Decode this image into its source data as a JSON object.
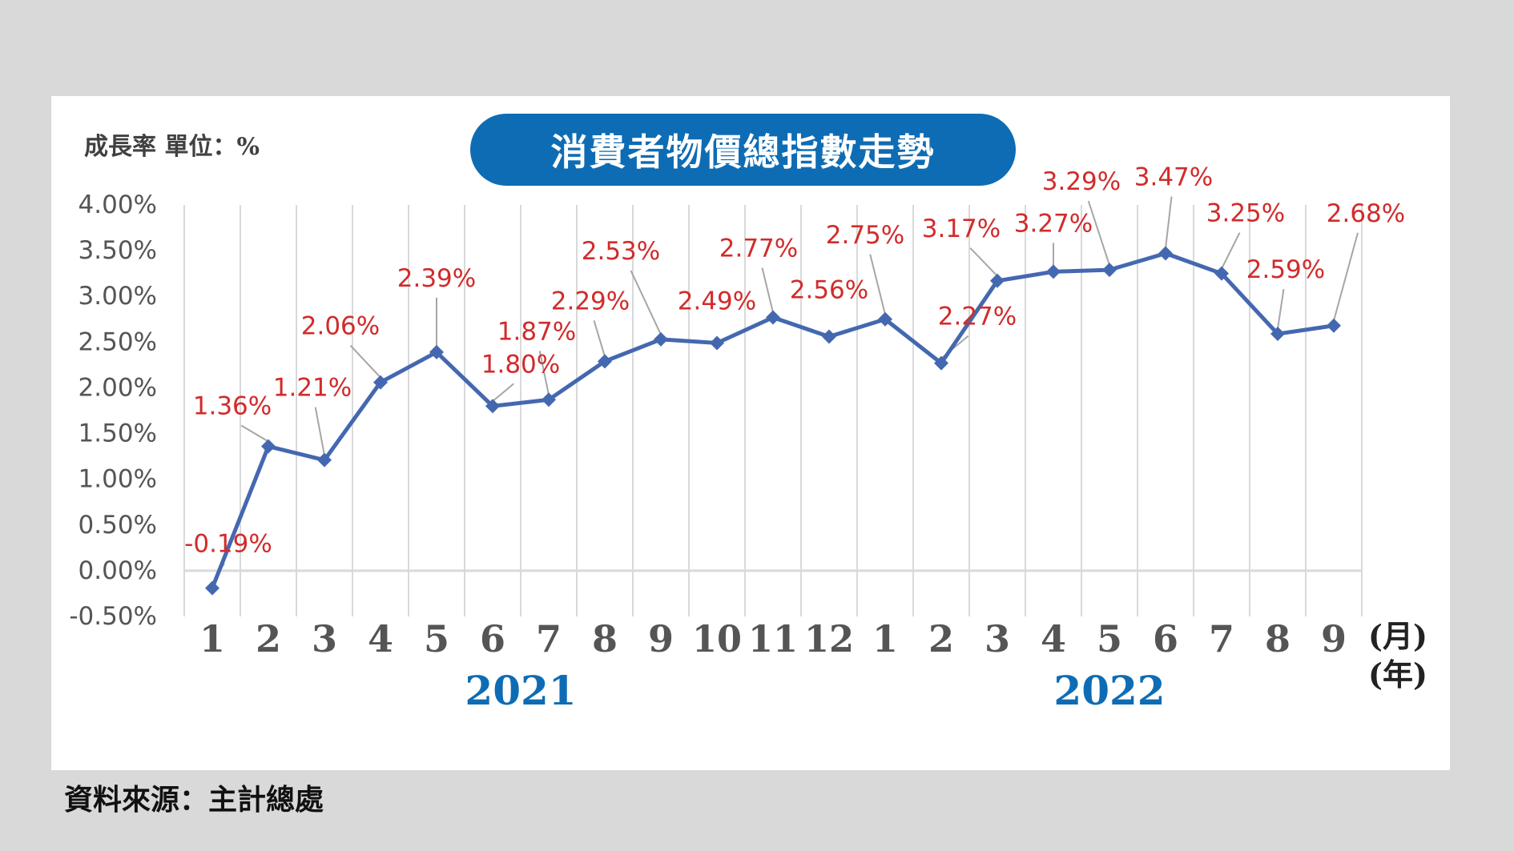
{
  "unit_label": "成長率 單位：%",
  "source": "資料來源：主計總處",
  "chart_data": {
    "type": "line",
    "title": "消費者物價總指數走勢",
    "ylabel": "",
    "xlabel": "",
    "ylim": [
      -0.5,
      4.0
    ],
    "y_ticks": [
      "4.00%",
      "3.50%",
      "3.00%",
      "2.50%",
      "2.00%",
      "1.50%",
      "1.00%",
      "0.50%",
      "0.00%",
      "-0.50%"
    ],
    "y_tick_values": [
      4.0,
      3.5,
      3.0,
      2.5,
      2.0,
      1.5,
      1.0,
      0.5,
      0.0,
      -0.5
    ],
    "categories": [
      "1",
      "2",
      "3",
      "4",
      "5",
      "6",
      "7",
      "8",
      "9",
      "10",
      "11",
      "12",
      "1",
      "2",
      "3",
      "4",
      "5",
      "6",
      "7",
      "8",
      "9"
    ],
    "years": [
      {
        "label": "2021",
        "months": 12
      },
      {
        "label": "2022",
        "months": 9
      }
    ],
    "month_unit": "(月)",
    "year_unit": "(年)",
    "series": [
      {
        "values": [
          -0.19,
          1.36,
          1.21,
          2.06,
          2.39,
          1.8,
          1.87,
          2.29,
          2.53,
          2.49,
          2.77,
          2.56,
          2.75,
          2.27,
          3.17,
          3.27,
          3.29,
          3.47,
          3.25,
          2.59,
          2.68
        ],
        "labels": [
          "-0.19%",
          "1.36%",
          "1.21%",
          "2.06%",
          "2.39%",
          "1.80%",
          "1.87%",
          "2.29%",
          "2.53%",
          "2.49%",
          "2.77%",
          "2.56%",
          "2.75%",
          "2.27%",
          "3.17%",
          "3.27%",
          "3.29%",
          "3.47%",
          "3.25%",
          "2.59%",
          "2.68%"
        ]
      }
    ],
    "grid": "vertical",
    "colors": {
      "line": "#4468b0",
      "label": "#d22b2b",
      "title_bg": "#0e6cb4",
      "year": "#0e6cb4",
      "axis_text": "#555555",
      "grid": "#d9d9d9"
    }
  }
}
